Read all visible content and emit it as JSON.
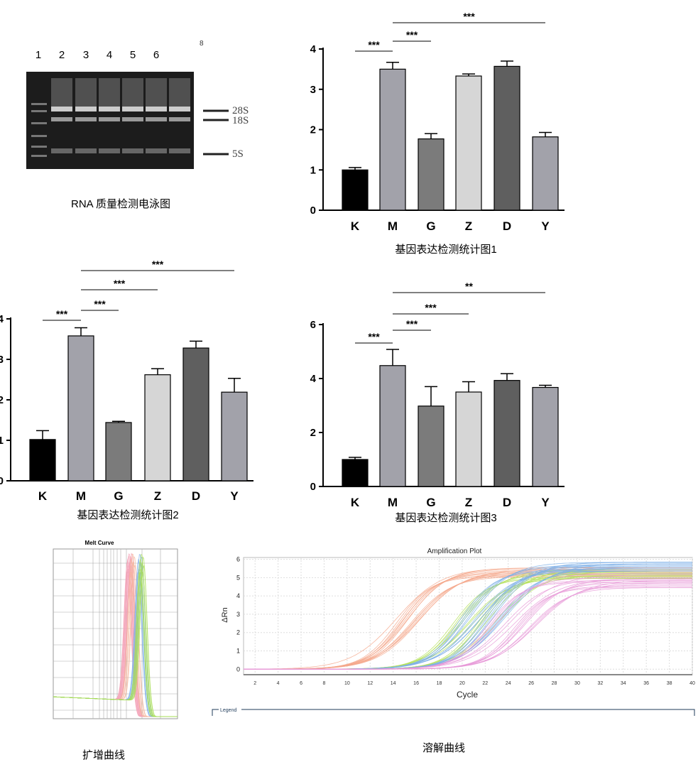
{
  "gel": {
    "lane_labels": [
      "1",
      "2",
      "3",
      "4",
      "5",
      "6"
    ],
    "band_labels": [
      "28S",
      "18S",
      "5S"
    ],
    "corner_mark": "8",
    "caption": "RNA 质量检测电泳图"
  },
  "chart_data": [
    {
      "type": "bar",
      "caption": "基因表达检测统计图1",
      "categories": [
        "K",
        "M",
        "G",
        "Z",
        "D",
        "Y"
      ],
      "values": [
        1.0,
        3.5,
        1.77,
        3.33,
        3.57,
        1.82
      ],
      "errors": [
        0.06,
        0.17,
        0.13,
        0.05,
        0.13,
        0.11
      ],
      "colors": [
        "#000000",
        "#a2a2aa",
        "#7b7b7b",
        "#d6d6d6",
        "#5f5f5f",
        "#a2a2aa"
      ],
      "ylim": [
        0,
        4
      ],
      "yticks": [
        0,
        1,
        2,
        3,
        4
      ],
      "significance": [
        {
          "from": "K",
          "to": "M",
          "label": "***"
        },
        {
          "from": "M",
          "to": "G",
          "label": "***"
        },
        {
          "from": "M",
          "to": "Y",
          "label": "***"
        }
      ]
    },
    {
      "type": "bar",
      "caption": "基因表达检测统计图2",
      "categories": [
        "K",
        "M",
        "G",
        "Z",
        "D",
        "Y"
      ],
      "values": [
        1.02,
        3.58,
        1.44,
        2.62,
        3.28,
        2.19
      ],
      "errors": [
        0.22,
        0.2,
        0.03,
        0.15,
        0.17,
        0.34
      ],
      "colors": [
        "#000000",
        "#a2a2aa",
        "#7b7b7b",
        "#d6d6d6",
        "#5f5f5f",
        "#a2a2aa"
      ],
      "ylim": [
        0,
        4
      ],
      "yticks": [
        0,
        1,
        2,
        3,
        4
      ],
      "significance": [
        {
          "from": "K",
          "to": "M",
          "label": "***"
        },
        {
          "from": "M",
          "to": "G",
          "label": "***"
        },
        {
          "from": "M",
          "to": "Z",
          "label": "***"
        },
        {
          "from": "M",
          "to": "Y",
          "label": "***"
        }
      ]
    },
    {
      "type": "bar",
      "caption": "基因表达检测统计图3",
      "categories": [
        "K",
        "M",
        "G",
        "Z",
        "D",
        "Y"
      ],
      "values": [
        1.0,
        4.48,
        2.98,
        3.5,
        3.93,
        3.67
      ],
      "errors": [
        0.08,
        0.6,
        0.72,
        0.38,
        0.25,
        0.08
      ],
      "colors": [
        "#000000",
        "#a2a2aa",
        "#7b7b7b",
        "#d6d6d6",
        "#5f5f5f",
        "#a2a2aa"
      ],
      "ylim": [
        0,
        6
      ],
      "yticks": [
        0,
        2,
        4,
        6
      ],
      "significance": [
        {
          "from": "K",
          "to": "M",
          "label": "***"
        },
        {
          "from": "M",
          "to": "G",
          "label": "***"
        },
        {
          "from": "M",
          "to": "Z",
          "label": "***"
        },
        {
          "from": "M",
          "to": "Y",
          "label": "**"
        }
      ]
    },
    {
      "type": "line",
      "title": "Melt Curve",
      "caption": "扩增曲线",
      "xlim": [
        60,
        95
      ],
      "grid": true,
      "series": [
        {
          "color": "#f4a3b8",
          "peak": 81.5,
          "count": 14
        },
        {
          "color": "#f5b49a",
          "peak": 82.5,
          "count": 6
        },
        {
          "color": "#7fb0e8",
          "peak": 84.5,
          "count": 8
        },
        {
          "color": "#a6dd55",
          "peak": 85,
          "count": 8
        }
      ]
    },
    {
      "type": "line",
      "title": "Amplification Plot",
      "caption": "溶解曲线",
      "xlabel": "Cycle",
      "ylabel": "ΔRn",
      "xlim": [
        1,
        40
      ],
      "ylim": [
        -0.3,
        6.1
      ],
      "xticks": [
        2,
        4,
        6,
        8,
        10,
        12,
        14,
        16,
        18,
        20,
        22,
        24,
        26,
        28,
        30,
        32,
        34,
        36,
        38,
        40
      ],
      "yticks": [
        0,
        1,
        2,
        3,
        4,
        5,
        6
      ],
      "grid": true,
      "legend_label": "Legend",
      "series": [
        {
          "color": "#f5a88c",
          "midpoint": 15.3,
          "plateau": 5.3,
          "count": 14
        },
        {
          "color": "#b4e05a",
          "midpoint": 20.2,
          "plateau": 5.2,
          "count": 8
        },
        {
          "color": "#7fb0e8",
          "midpoint": 20.8,
          "plateau": 5.6,
          "count": 8
        },
        {
          "color": "#b4e05a",
          "midpoint": 22.3,
          "plateau": 5.2,
          "count": 6
        },
        {
          "color": "#7fb0e8",
          "midpoint": 22.8,
          "plateau": 5.6,
          "count": 10
        },
        {
          "color": "#e79ad8",
          "midpoint": 23.2,
          "plateau": 5.0,
          "count": 6
        },
        {
          "color": "#e79ad8",
          "midpoint": 25.5,
          "plateau": 4.7,
          "count": 10
        }
      ]
    }
  ]
}
